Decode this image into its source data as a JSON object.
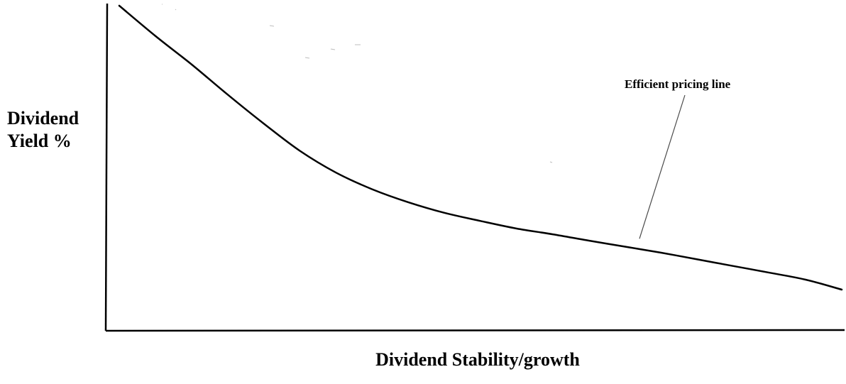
{
  "chart_data": {
    "type": "line",
    "title": "",
    "xlabel": "Dividend Stability/growth",
    "ylabel_lines": [
      "Dividend",
      "Yield %"
    ],
    "grid": false,
    "legend": "none",
    "line_color": "#000000",
    "xlim": [
      0,
      100
    ],
    "ylim": [
      0,
      100
    ],
    "series": [
      {
        "x": [
          0,
          5,
          10,
          15,
          20,
          25,
          30,
          35,
          40,
          45,
          50,
          55,
          60,
          65,
          70,
          75,
          80,
          85,
          90,
          95,
          100
        ],
        "y": [
          100,
          90,
          80.6,
          70.6,
          61.0,
          52.0,
          44.8,
          39.3,
          35.0,
          31.5,
          28.8,
          26.3,
          24.4,
          22.3,
          20.3,
          18.3,
          16.1,
          13.9,
          11.7,
          9.4,
          6.1
        ]
      }
    ],
    "annotations": [
      {
        "text": "Efficient pricing line",
        "x": 72,
        "y": 22
      }
    ]
  }
}
